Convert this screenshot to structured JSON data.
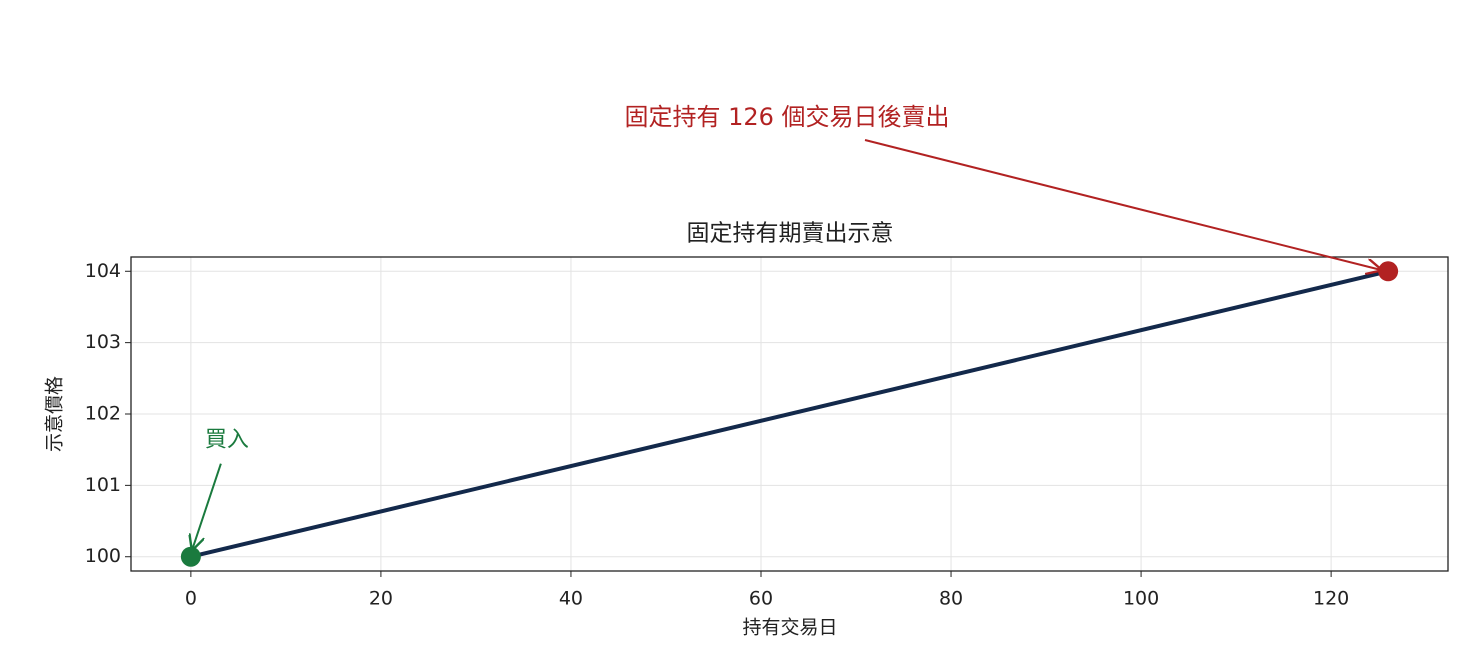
{
  "chart_data": {
    "type": "line",
    "title": "固定持有期賣出示意",
    "x_label": "持有交易日",
    "y_label": "示意價格",
    "x": [
      0,
      126
    ],
    "series": [
      {
        "color": "#13294b",
        "values": [
          100,
          104
        ]
      }
    ],
    "xlim": [
      -6.3,
      132.3
    ],
    "ylim": [
      99.8,
      104.2
    ],
    "xticks": [
      0,
      20,
      40,
      60,
      80,
      100,
      120
    ],
    "yticks": [
      100,
      101,
      102,
      103,
      104
    ],
    "grid": true,
    "annotations": [
      {
        "text": "買入",
        "color": "#1a7a3e"
      },
      {
        "text": "固定持有 126 個交易日後賣出",
        "color": "#b22222"
      }
    ]
  }
}
